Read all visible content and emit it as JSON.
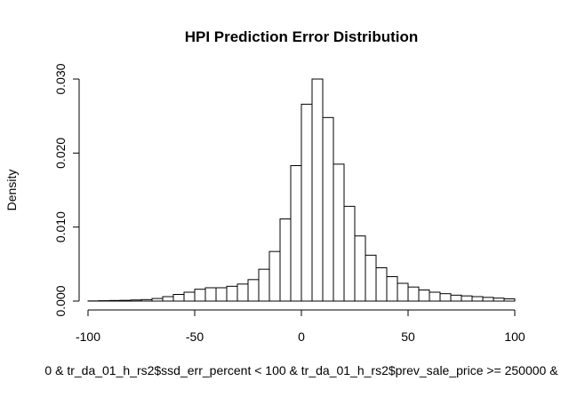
{
  "chart_data": {
    "type": "bar",
    "title": "HPI Prediction Error Distribution",
    "xlabel": "0 & tr_da_01_h_rs2$ssd_err_percent < 100 & tr_da_01_h_rs2$prev_sale_price >= 250000 &",
    "ylabel": "Density",
    "xlim": [
      -100,
      100
    ],
    "ylim": [
      0,
      0.03
    ],
    "bin_width": 5,
    "bin_start": -100,
    "x_ticks": [
      -100,
      -50,
      0,
      50,
      100
    ],
    "x_tick_labels": [
      "-100",
      "-50",
      "0",
      "50",
      "100"
    ],
    "y_ticks": [
      0,
      0.01,
      0.02,
      0.03
    ],
    "y_tick_labels": [
      "0.000",
      "0.010",
      "0.020",
      "0.030"
    ],
    "grid": false,
    "legend": "none",
    "values": [
      2e-05,
      5e-05,
      8e-05,
      0.0001,
      0.00015,
      0.0002,
      0.00035,
      0.0006,
      0.0009,
      0.0012,
      0.0016,
      0.0018,
      0.0018,
      0.002,
      0.0023,
      0.0029,
      0.0043,
      0.0067,
      0.0111,
      0.0183,
      0.0266,
      0.03,
      0.0248,
      0.0185,
      0.0128,
      0.0088,
      0.0062,
      0.0045,
      0.0033,
      0.0024,
      0.0019,
      0.0015,
      0.0012,
      0.001,
      0.0008,
      0.0007,
      0.0006,
      0.0005,
      0.0004,
      0.0003
    ]
  }
}
